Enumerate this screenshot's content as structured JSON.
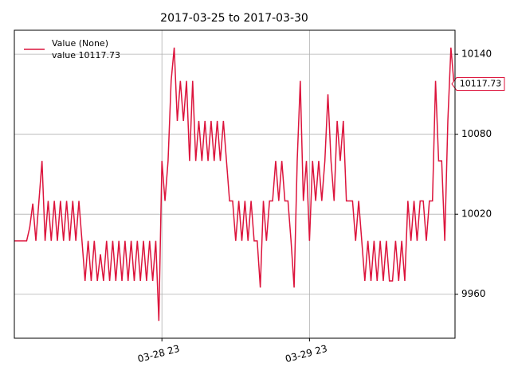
{
  "chart_data": {
    "type": "line",
    "title": "2017-03-25 to 2017-03-30",
    "x": [
      "03-27 23:00",
      "03-27 23:30",
      "03-28 00:00",
      "03-28 00:30",
      "03-28 01:00",
      "03-28 01:30",
      "03-28 02:00",
      "03-28 02:30",
      "03-28 03:00",
      "03-28 03:30",
      "03-28 04:00",
      "03-28 04:30",
      "03-28 05:00",
      "03-28 05:30",
      "03-28 06:00",
      "03-28 06:30",
      "03-28 07:00",
      "03-28 07:30",
      "03-28 08:00",
      "03-28 08:30",
      "03-28 09:00",
      "03-28 09:30",
      "03-28 10:00",
      "03-28 10:30",
      "03-28 11:00",
      "03-28 11:30",
      "03-28 12:00",
      "03-28 12:30",
      "03-28 13:00",
      "03-28 13:30",
      "03-28 14:00",
      "03-28 14:30",
      "03-28 15:00",
      "03-28 15:30",
      "03-28 16:00",
      "03-28 16:30",
      "03-28 17:00",
      "03-28 17:30",
      "03-28 18:00",
      "03-28 18:30",
      "03-28 19:00",
      "03-28 19:30",
      "03-28 20:00",
      "03-28 20:30",
      "03-28 21:00",
      "03-28 21:30",
      "03-28 22:00",
      "03-28 22:30",
      "03-28 23:00",
      "03-28 23:30",
      "03-29 00:00",
      "03-29 00:30",
      "03-29 01:00",
      "03-29 01:30",
      "03-29 02:00",
      "03-29 02:30",
      "03-29 03:00",
      "03-29 03:30",
      "03-29 04:00",
      "03-29 04:30",
      "03-29 05:00",
      "03-29 05:30",
      "03-29 06:00",
      "03-29 06:30",
      "03-29 07:00",
      "03-29 07:30",
      "03-29 08:00",
      "03-29 08:30",
      "03-29 09:00",
      "03-29 09:30",
      "03-29 10:00",
      "03-29 10:30",
      "03-29 11:00",
      "03-29 11:30",
      "03-29 12:00",
      "03-29 12:30",
      "03-29 13:00",
      "03-29 13:30",
      "03-29 14:00",
      "03-29 14:30",
      "03-29 15:00",
      "03-29 15:30",
      "03-29 16:00",
      "03-29 16:30",
      "03-29 17:00",
      "03-29 17:30",
      "03-29 18:00",
      "03-29 18:30",
      "03-29 19:00",
      "03-29 19:30",
      "03-29 20:00",
      "03-29 20:30",
      "03-29 21:00",
      "03-29 21:30",
      "03-29 22:00",
      "03-29 22:30",
      "03-29 23:00",
      "03-29 23:30",
      "03-30 00:00",
      "03-30 00:30",
      "03-30 01:00",
      "03-30 01:30",
      "03-30 02:00",
      "03-30 02:30",
      "03-30 03:00",
      "03-30 03:30",
      "03-30 04:00",
      "03-30 04:30",
      "03-30 05:00",
      "03-30 05:30",
      "03-30 06:00",
      "03-30 06:30",
      "03-30 07:00",
      "03-30 07:30",
      "03-30 08:00",
      "03-30 08:30",
      "03-30 09:00",
      "03-30 09:30",
      "03-30 10:00",
      "03-30 10:30",
      "03-30 11:00",
      "03-30 11:30",
      "03-30 12:00",
      "03-30 12:30",
      "03-30 13:00",
      "03-30 13:30",
      "03-30 14:00",
      "03-30 14:30",
      "03-30 15:00",
      "03-30 15:30",
      "03-30 16:00",
      "03-30 16:30",
      "03-30 17:00",
      "03-30 17:30",
      "03-30 18:00",
      "03-30 18:30",
      "03-30 19:00",
      "03-30 19:30",
      "03-30 20:00",
      "03-30 20:30",
      "03-30 21:00",
      "03-30 21:30",
      "03-30 22:00",
      "03-30 22:30"
    ],
    "series": [
      {
        "name": "Value (None)",
        "color": "#dc143c",
        "values": [
          10000,
          10000,
          10000,
          10000,
          10000,
          10010,
          10028,
          10000,
          10030,
          10060,
          10000,
          10030,
          10000,
          10030,
          10000,
          10030,
          10000,
          10030,
          10000,
          10030,
          10000,
          10030,
          10000,
          9970,
          10000,
          9970,
          10000,
          9970,
          9990,
          9970,
          10000,
          9970,
          10000,
          9970,
          10000,
          9970,
          10000,
          9970,
          10000,
          9970,
          10000,
          9970,
          10000,
          9970,
          10000,
          9970,
          10000,
          9940,
          10060,
          10030,
          10060,
          10120,
          10145,
          10090,
          10120,
          10090,
          10120,
          10060,
          10120,
          10060,
          10090,
          10060,
          10090,
          10060,
          10090,
          10060,
          10090,
          10060,
          10090,
          10060,
          10030,
          10030,
          10000,
          10030,
          10000,
          10030,
          10000,
          10030,
          10000,
          10000,
          9965,
          10030,
          10000,
          10030,
          10030,
          10060,
          10030,
          10060,
          10030,
          10030,
          10000,
          9965,
          10060,
          10120,
          10030,
          10060,
          10000,
          10060,
          10030,
          10060,
          10030,
          10060,
          10110,
          10060,
          10030,
          10090,
          10060,
          10090,
          10030,
          10030,
          10030,
          10000,
          10030,
          10000,
          9970,
          10000,
          9970,
          10000,
          9970,
          10000,
          9970,
          10000,
          9970,
          9970,
          10000,
          9970,
          10000,
          9970,
          10030,
          10000,
          10030,
          10000,
          10030,
          10030,
          10000,
          10030,
          10030,
          10120,
          10060,
          10060,
          10000,
          10090,
          10145,
          10117.73
        ]
      }
    ],
    "legend_note": "value 10117.73",
    "end_label": "10117.73",
    "legend": "upper left",
    "grid": true,
    "xlim": [
      "03-27 23:00",
      "03-30 22:40"
    ],
    "xticks": [
      {
        "value": "03-28 23:00",
        "label": "03-28 23"
      },
      {
        "value": "03-29 23:00",
        "label": "03-29 23"
      }
    ],
    "ylim": [
      9927,
      10158
    ],
    "yticks": [
      9960,
      10020,
      10080,
      10140
    ]
  }
}
